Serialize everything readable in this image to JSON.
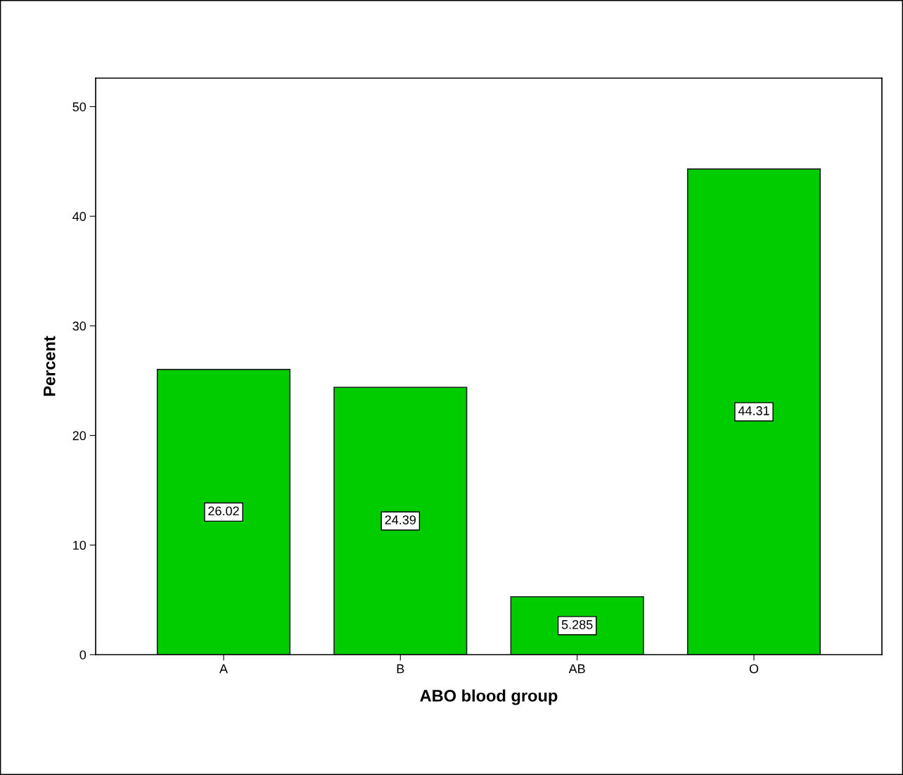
{
  "chart_data": {
    "type": "bar",
    "xlabel": "ABO blood group",
    "ylabel": "Percent",
    "categories": [
      "A",
      "B",
      "AB",
      "O"
    ],
    "values": [
      26.02,
      24.39,
      5.285,
      44.31
    ],
    "color": "#00cc00",
    "ylim": [
      0,
      52.6
    ],
    "yticks": [
      0,
      10,
      20,
      30,
      40,
      50
    ],
    "data_labels": true,
    "grid": false
  }
}
